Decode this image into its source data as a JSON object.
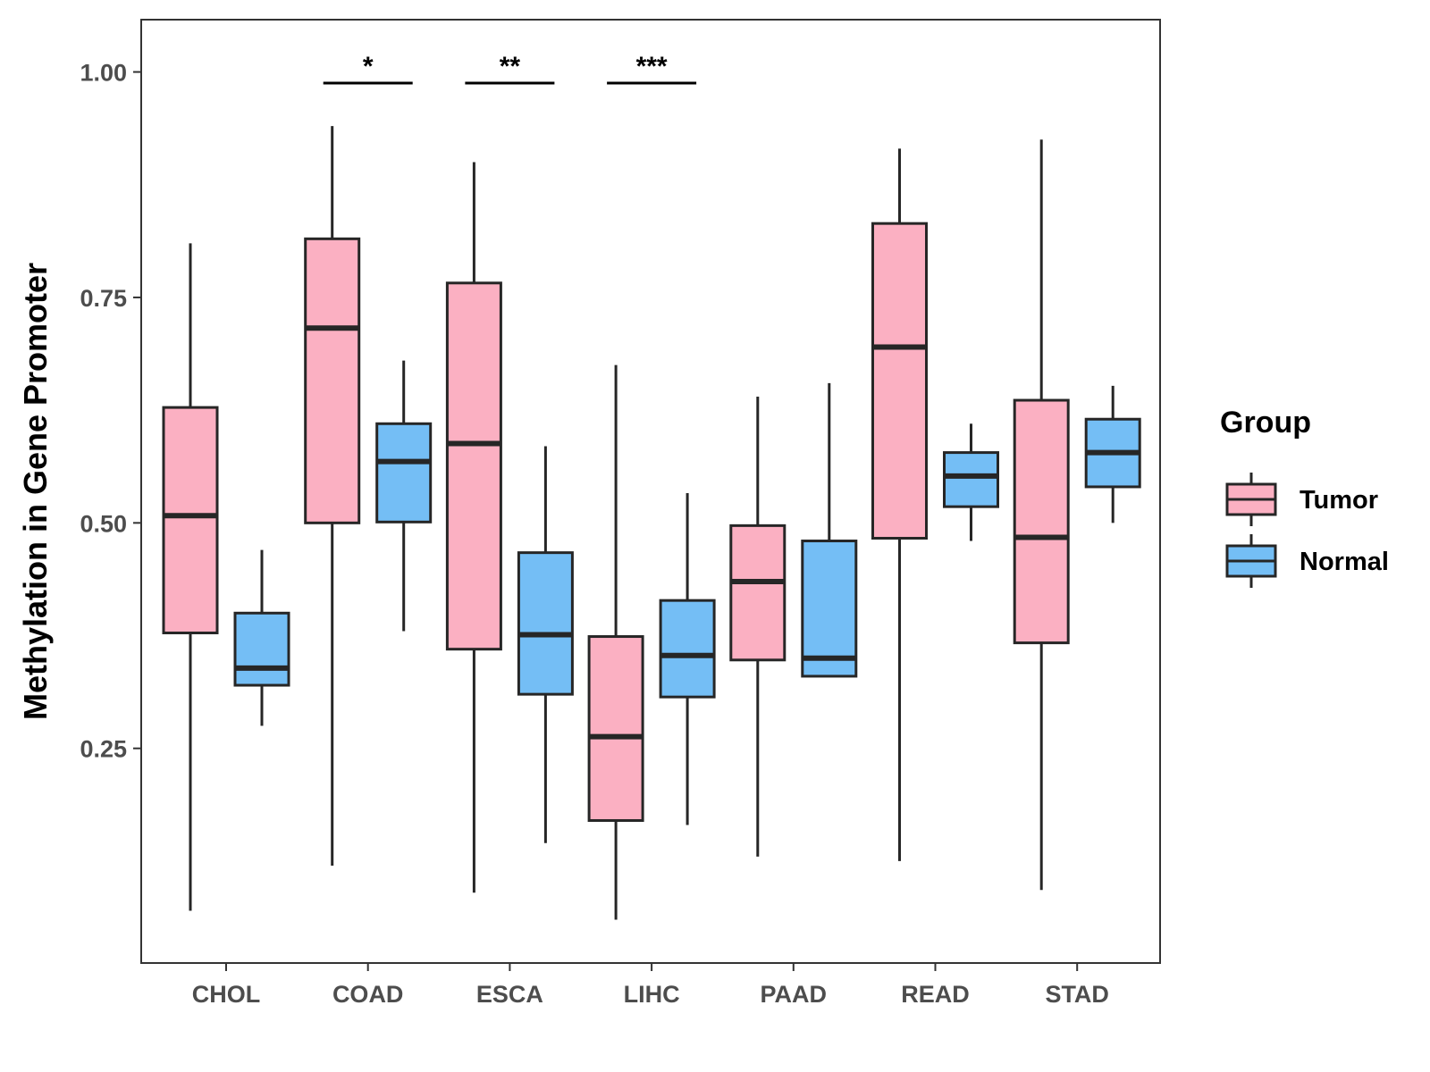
{
  "chart_data": {
    "type": "boxplot",
    "title": "",
    "xlabel": "",
    "ylabel": "Methylation in Gene Promoter",
    "ylim": [
      0.012,
      1.058
    ],
    "yticks": [
      0.25,
      0.5,
      0.75,
      1.0
    ],
    "ytick_labels": [
      "0.25",
      "0.50",
      "0.75",
      "1.00"
    ],
    "categories": [
      "CHOL",
      "COAD",
      "ESCA",
      "LIHC",
      "PAAD",
      "READ",
      "STAD"
    ],
    "legend": {
      "title": "Group",
      "position": "right",
      "entries": [
        "Tumor",
        "Normal"
      ]
    },
    "series": [
      {
        "name": "Tumor",
        "color": "#FBB0C2",
        "boxes": [
          {
            "category": "CHOL",
            "min": 0.07,
            "q1": 0.378,
            "median": 0.508,
            "q3": 0.628,
            "max": 0.81
          },
          {
            "category": "COAD",
            "min": 0.12,
            "q1": 0.5,
            "median": 0.716,
            "q3": 0.815,
            "max": 0.94
          },
          {
            "category": "ESCA",
            "min": 0.09,
            "q1": 0.36,
            "median": 0.588,
            "q3": 0.766,
            "max": 0.9
          },
          {
            "category": "LIHC",
            "min": 0.06,
            "q1": 0.17,
            "median": 0.263,
            "q3": 0.374,
            "max": 0.675
          },
          {
            "category": "PAAD",
            "min": 0.13,
            "q1": 0.348,
            "median": 0.435,
            "q3": 0.497,
            "max": 0.64
          },
          {
            "category": "READ",
            "min": 0.125,
            "q1": 0.483,
            "median": 0.695,
            "q3": 0.832,
            "max": 0.915
          },
          {
            "category": "STAD",
            "min": 0.093,
            "q1": 0.367,
            "median": 0.484,
            "q3": 0.636,
            "max": 0.925
          }
        ]
      },
      {
        "name": "Normal",
        "color": "#74BEF5",
        "boxes": [
          {
            "category": "CHOL",
            "min": 0.275,
            "q1": 0.32,
            "median": 0.339,
            "q3": 0.4,
            "max": 0.47
          },
          {
            "category": "COAD",
            "min": 0.38,
            "q1": 0.501,
            "median": 0.568,
            "q3": 0.61,
            "max": 0.68
          },
          {
            "category": "ESCA",
            "min": 0.145,
            "q1": 0.31,
            "median": 0.376,
            "q3": 0.467,
            "max": 0.585
          },
          {
            "category": "LIHC",
            "min": 0.165,
            "q1": 0.307,
            "median": 0.353,
            "q3": 0.414,
            "max": 0.533
          },
          {
            "category": "PAAD",
            "min": 0.33,
            "q1": 0.33,
            "median": 0.35,
            "q3": 0.48,
            "max": 0.655
          },
          {
            "category": "READ",
            "min": 0.48,
            "q1": 0.518,
            "median": 0.552,
            "q3": 0.578,
            "max": 0.61
          },
          {
            "category": "STAD",
            "min": 0.5,
            "q1": 0.54,
            "median": 0.578,
            "q3": 0.615,
            "max": 0.652
          }
        ]
      }
    ],
    "annotations": [
      {
        "category": "COAD",
        "label": "*"
      },
      {
        "category": "ESCA",
        "label": "**"
      },
      {
        "category": "LIHC",
        "label": "***"
      }
    ],
    "colors": {
      "box_outline": "#262626",
      "tick_label": "#4d4d4d",
      "panel_border": "#333333"
    }
  }
}
